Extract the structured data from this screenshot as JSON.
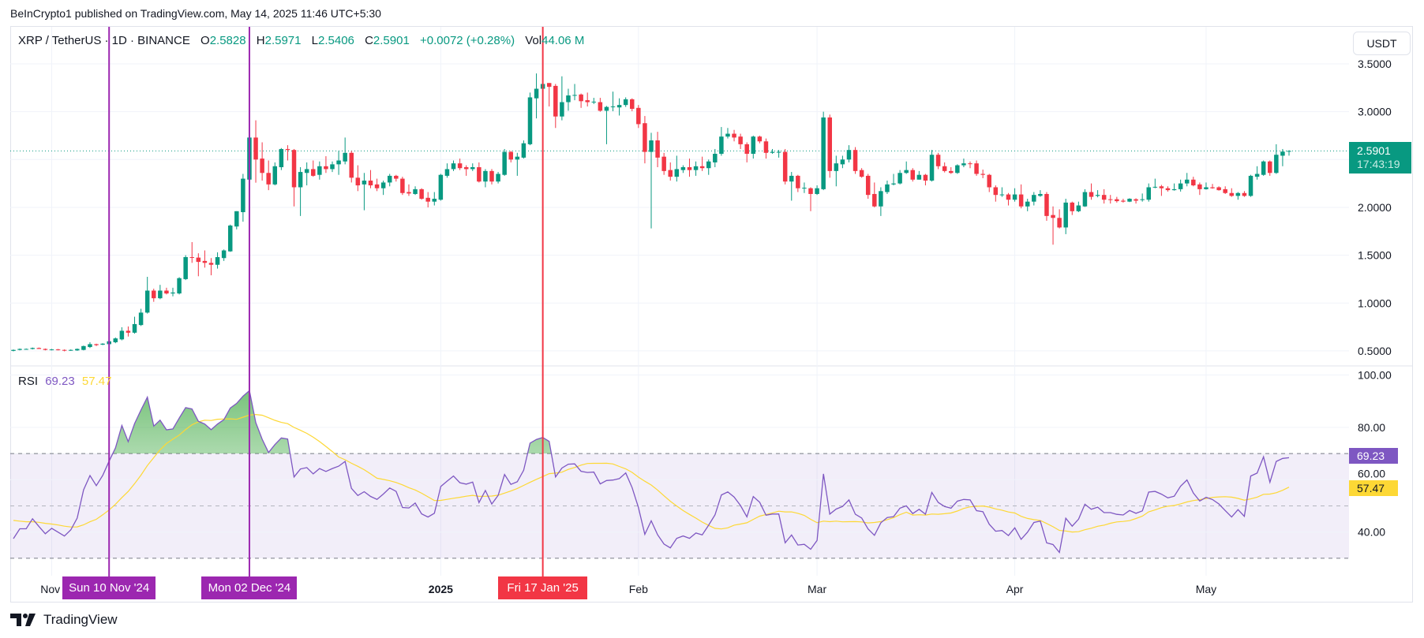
{
  "publisher": "BeInCrypto1 published on TradingView.com, May 14, 2025 11:46 UTC+5:30",
  "legend": {
    "symbol": "XRP / TetherUS · 1D · BINANCE",
    "o_label": "O",
    "o": "2.5828",
    "h_label": "H",
    "h": "2.5971",
    "l_label": "L",
    "l": "2.5406",
    "c_label": "C",
    "c": "2.5901",
    "change": "+0.0072 (+0.28%)",
    "vol_label": "Vol",
    "vol": "44.06 M"
  },
  "currency_button": "USDT",
  "price_tag": {
    "price": "2.5901",
    "countdown": "17:43:19"
  },
  "rsi_legend": {
    "label": "RSI",
    "rsi": "69.23",
    "ma": "57.47"
  },
  "logo": "TradingView",
  "colors": {
    "up": "#089981",
    "down": "#f23645",
    "rsi": "#7e57c2",
    "rsi_ma": "#fdd835",
    "marker_purple": "#9c27b0",
    "marker_red": "#f23645"
  },
  "chart_data": [
    {
      "type": "candlestick",
      "interval": "1D",
      "x_start": "2024-10-26",
      "x_end": "2025-05-14",
      "ylim": [
        0.45,
        3.6
      ],
      "grid": true,
      "y_ticks": [
        "3.5000",
        "3.0000",
        "2.0000",
        "1.5000",
        "1.0000",
        "0.5000"
      ],
      "y_tick_values": [
        3.5,
        3.0,
        2.5,
        2.0,
        1.5,
        1.0,
        0.5
      ],
      "x_ticks": [
        {
          "label": "Nov",
          "date": "2024-11-01"
        },
        {
          "label": "2025",
          "date": "2025-01-01",
          "bold": true
        },
        {
          "label": "Feb",
          "date": "2025-02-01"
        },
        {
          "label": "Mar",
          "date": "2025-03-01"
        },
        {
          "label": "Apr",
          "date": "2025-04-01"
        },
        {
          "label": "May",
          "date": "2025-05-01"
        }
      ],
      "last_price": 2.5901,
      "ohlc": [
        [
          0.5,
          0.515,
          0.495,
          0.51
        ],
        [
          0.51,
          0.525,
          0.505,
          0.52
        ],
        [
          0.52,
          0.525,
          0.515,
          0.52
        ],
        [
          0.52,
          0.535,
          0.515,
          0.53
        ],
        [
          0.53,
          0.535,
          0.52,
          0.52
        ],
        [
          0.52,
          0.525,
          0.505,
          0.51
        ],
        [
          0.51,
          0.52,
          0.505,
          0.515
        ],
        [
          0.515,
          0.52,
          0.505,
          0.51
        ],
        [
          0.51,
          0.515,
          0.495,
          0.505
        ],
        [
          0.505,
          0.515,
          0.5,
          0.51
        ],
        [
          0.505,
          0.525,
          0.5,
          0.52
        ],
        [
          0.51,
          0.555,
          0.505,
          0.55
        ],
        [
          0.54,
          0.59,
          0.53,
          0.57
        ],
        [
          0.57,
          0.575,
          0.55,
          0.56
        ],
        [
          0.565,
          0.58,
          0.56,
          0.575
        ],
        [
          0.57,
          0.61,
          0.565,
          0.6
        ],
        [
          0.59,
          0.64,
          0.58,
          0.63
        ],
        [
          0.62,
          0.747,
          0.61,
          0.71
        ],
        [
          0.71,
          0.755,
          0.65,
          0.69
        ],
        [
          0.69,
          0.857,
          0.68,
          0.78
        ],
        [
          0.77,
          0.94,
          0.76,
          0.9
        ],
        [
          0.9,
          1.274,
          0.89,
          1.13
        ],
        [
          1.13,
          1.15,
          1.013,
          1.05
        ],
        [
          1.05,
          1.19,
          1.04,
          1.13
        ],
        [
          1.13,
          1.16,
          1.09,
          1.1
        ],
        [
          1.1,
          1.16,
          1.07,
          1.11
        ],
        [
          1.1,
          1.27,
          1.09,
          1.26
        ],
        [
          1.25,
          1.5,
          1.24,
          1.48
        ],
        [
          1.48,
          1.637,
          1.42,
          1.475
        ],
        [
          1.475,
          1.52,
          1.28,
          1.43
        ],
        [
          1.44,
          1.55,
          1.37,
          1.42
        ],
        [
          1.42,
          1.47,
          1.29,
          1.4
        ],
        [
          1.4,
          1.53,
          1.36,
          1.48
        ],
        [
          1.47,
          1.56,
          1.44,
          1.55
        ],
        [
          1.54,
          1.82,
          1.535,
          1.81
        ],
        [
          1.8,
          1.96,
          1.77,
          1.96
        ],
        [
          1.95,
          2.35,
          1.85,
          2.3
        ],
        [
          2.29,
          2.876,
          2.21,
          2.73
        ],
        [
          2.73,
          2.91,
          2.258,
          2.5
        ],
        [
          2.51,
          2.68,
          2.28,
          2.36
        ],
        [
          2.36,
          2.49,
          2.18,
          2.24
        ],
        [
          2.24,
          2.47,
          2.23,
          2.43
        ],
        [
          2.42,
          2.62,
          2.39,
          2.61
        ],
        [
          2.61,
          2.65,
          2.49,
          2.6
        ],
        [
          2.6,
          2.61,
          2.01,
          2.21
        ],
        [
          2.21,
          2.42,
          1.91,
          2.37
        ],
        [
          2.36,
          2.47,
          2.23,
          2.4
        ],
        [
          2.4,
          2.49,
          2.32,
          2.33
        ],
        [
          2.34,
          2.48,
          2.29,
          2.43
        ],
        [
          2.43,
          2.535,
          2.36,
          2.4
        ],
        [
          2.4,
          2.48,
          2.37,
          2.45
        ],
        [
          2.45,
          2.59,
          2.34,
          2.49
        ],
        [
          2.48,
          2.73,
          2.45,
          2.57
        ],
        [
          2.57,
          2.59,
          2.26,
          2.31
        ],
        [
          2.31,
          2.44,
          2.17,
          2.23
        ],
        [
          2.24,
          2.36,
          1.97,
          2.28
        ],
        [
          2.28,
          2.39,
          2.2,
          2.23
        ],
        [
          2.24,
          2.3,
          2.17,
          2.2
        ],
        [
          2.2,
          2.28,
          2.13,
          2.26
        ],
        [
          2.26,
          2.35,
          2.22,
          2.33
        ],
        [
          2.33,
          2.34,
          2.27,
          2.3
        ],
        [
          2.3,
          2.32,
          2.13,
          2.15
        ],
        [
          2.16,
          2.24,
          2.12,
          2.145
        ],
        [
          2.14,
          2.22,
          2.13,
          2.19
        ],
        [
          2.19,
          2.2,
          2.08,
          2.09
        ],
        [
          2.1,
          2.16,
          2.0,
          2.06
        ],
        [
          2.06,
          2.16,
          2.02,
          2.09
        ],
        [
          2.08,
          2.35,
          2.07,
          2.34
        ],
        [
          2.33,
          2.46,
          2.31,
          2.4
        ],
        [
          2.4,
          2.49,
          2.38,
          2.46
        ],
        [
          2.46,
          2.51,
          2.39,
          2.41
        ],
        [
          2.42,
          2.44,
          2.33,
          2.4
        ],
        [
          2.4,
          2.46,
          2.38,
          2.42
        ],
        [
          2.42,
          2.47,
          2.26,
          2.27
        ],
        [
          2.27,
          2.4,
          2.21,
          2.38
        ],
        [
          2.38,
          2.4,
          2.24,
          2.27
        ],
        [
          2.27,
          2.37,
          2.25,
          2.35
        ],
        [
          2.34,
          2.61,
          2.33,
          2.58
        ],
        [
          2.58,
          2.59,
          2.47,
          2.5
        ],
        [
          2.5,
          2.57,
          2.33,
          2.53
        ],
        [
          2.52,
          2.7,
          2.51,
          2.67
        ],
        [
          2.66,
          3.2,
          2.65,
          3.15
        ],
        [
          3.14,
          3.4,
          2.93,
          3.24
        ],
        [
          3.24,
          3.35,
          3.18,
          3.29
        ],
        [
          3.3,
          3.3,
          3.055,
          3.26
        ],
        [
          3.27,
          3.29,
          2.83,
          2.95
        ],
        [
          2.95,
          3.37,
          2.91,
          3.1
        ],
        [
          3.1,
          3.24,
          3.01,
          3.17
        ],
        [
          3.17,
          3.29,
          3.12,
          3.175
        ],
        [
          3.18,
          3.19,
          3.04,
          3.11
        ],
        [
          3.12,
          3.2,
          3.055,
          3.1
        ],
        [
          3.1,
          3.145,
          3.08,
          3.105
        ],
        [
          3.1,
          3.145,
          3.0,
          3.01
        ],
        [
          3.01,
          3.06,
          2.66,
          3.05
        ],
        [
          3.05,
          3.21,
          3.005,
          3.055
        ],
        [
          3.045,
          3.14,
          2.96,
          3.07
        ],
        [
          3.07,
          3.15,
          3.05,
          3.13
        ],
        [
          3.13,
          3.14,
          3.005,
          3.03
        ],
        [
          3.04,
          3.07,
          2.83,
          2.87
        ],
        [
          2.88,
          2.955,
          2.46,
          2.58
        ],
        [
          2.58,
          2.78,
          1.78,
          2.7
        ],
        [
          2.7,
          2.79,
          2.42,
          2.52
        ],
        [
          2.53,
          2.57,
          2.34,
          2.38
        ],
        [
          2.39,
          2.47,
          2.28,
          2.32
        ],
        [
          2.32,
          2.54,
          2.27,
          2.4
        ],
        [
          2.39,
          2.44,
          2.36,
          2.42
        ],
        [
          2.42,
          2.51,
          2.32,
          2.39
        ],
        [
          2.39,
          2.48,
          2.33,
          2.43
        ],
        [
          2.43,
          2.53,
          2.38,
          2.41
        ],
        [
          2.41,
          2.5,
          2.34,
          2.48
        ],
        [
          2.47,
          2.61,
          2.42,
          2.56
        ],
        [
          2.56,
          2.84,
          2.54,
          2.74
        ],
        [
          2.74,
          2.83,
          2.72,
          2.77
        ],
        [
          2.77,
          2.81,
          2.69,
          2.73
        ],
        [
          2.74,
          2.77,
          2.61,
          2.66
        ],
        [
          2.66,
          2.68,
          2.47,
          2.56
        ],
        [
          2.56,
          2.75,
          2.51,
          2.74
        ],
        [
          2.74,
          2.75,
          2.67,
          2.69
        ],
        [
          2.69,
          2.72,
          2.51,
          2.57
        ],
        [
          2.57,
          2.61,
          2.56,
          2.58
        ],
        [
          2.575,
          2.6,
          2.52,
          2.58
        ],
        [
          2.58,
          2.61,
          2.24,
          2.27
        ],
        [
          2.27,
          2.37,
          2.07,
          2.33
        ],
        [
          2.33,
          2.34,
          2.16,
          2.2
        ],
        [
          2.2,
          2.26,
          2.15,
          2.205
        ],
        [
          2.2,
          2.21,
          1.96,
          2.14
        ],
        [
          2.14,
          2.23,
          2.13,
          2.2
        ],
        [
          2.19,
          3.0,
          2.18,
          2.94
        ],
        [
          2.94,
          2.97,
          2.31,
          2.38
        ],
        [
          2.38,
          2.54,
          2.22,
          2.46
        ],
        [
          2.45,
          2.54,
          2.41,
          2.5
        ],
        [
          2.5,
          2.65,
          2.47,
          2.6
        ],
        [
          2.6,
          2.63,
          2.35,
          2.38
        ],
        [
          2.39,
          2.41,
          2.31,
          2.32
        ],
        [
          2.33,
          2.35,
          2.09,
          2.13
        ],
        [
          2.14,
          2.26,
          2.0,
          2.01
        ],
        [
          2.01,
          2.21,
          1.91,
          2.17
        ],
        [
          2.16,
          2.28,
          2.14,
          2.24
        ],
        [
          2.24,
          2.35,
          2.23,
          2.25
        ],
        [
          2.25,
          2.39,
          2.24,
          2.36
        ],
        [
          2.36,
          2.48,
          2.35,
          2.39
        ],
        [
          2.39,
          2.41,
          2.27,
          2.29
        ],
        [
          2.29,
          2.38,
          2.29,
          2.34
        ],
        [
          2.34,
          2.35,
          2.23,
          2.28
        ],
        [
          2.28,
          2.6,
          2.27,
          2.55
        ],
        [
          2.55,
          2.57,
          2.4,
          2.43
        ],
        [
          2.43,
          2.47,
          2.365,
          2.38
        ],
        [
          2.38,
          2.42,
          2.35,
          2.36
        ],
        [
          2.36,
          2.45,
          2.35,
          2.44
        ],
        [
          2.44,
          2.51,
          2.42,
          2.46
        ],
        [
          2.46,
          2.48,
          2.41,
          2.455
        ],
        [
          2.46,
          2.49,
          2.33,
          2.35
        ],
        [
          2.35,
          2.395,
          2.305,
          2.34
        ],
        [
          2.34,
          2.35,
          2.16,
          2.21
        ],
        [
          2.21,
          2.23,
          2.06,
          2.13
        ],
        [
          2.13,
          2.21,
          2.11,
          2.135
        ],
        [
          2.135,
          2.15,
          2.02,
          2.08
        ],
        [
          2.08,
          2.2,
          2.06,
          2.135
        ],
        [
          2.135,
          2.24,
          1.99,
          2.01
        ],
        [
          2.01,
          2.09,
          1.96,
          2.06
        ],
        [
          2.06,
          2.16,
          2.02,
          2.13
        ],
        [
          2.12,
          2.18,
          2.11,
          2.14
        ],
        [
          2.14,
          2.16,
          1.86,
          1.91
        ],
        [
          1.92,
          2.01,
          1.61,
          1.89
        ],
        [
          1.89,
          1.98,
          1.78,
          1.79
        ],
        [
          1.79,
          2.09,
          1.72,
          2.05
        ],
        [
          2.05,
          2.06,
          1.92,
          1.96
        ],
        [
          1.96,
          2.06,
          1.95,
          2.02
        ],
        [
          2.01,
          2.19,
          2.005,
          2.16
        ],
        [
          2.16,
          2.25,
          2.08,
          2.11
        ],
        [
          2.12,
          2.18,
          2.105,
          2.13
        ],
        [
          2.13,
          2.19,
          2.04,
          2.08
        ],
        [
          2.085,
          2.13,
          2.04,
          2.08
        ],
        [
          2.085,
          2.11,
          2.05,
          2.065
        ],
        [
          2.07,
          2.09,
          2.05,
          2.06
        ],
        [
          2.06,
          2.095,
          2.055,
          2.09
        ],
        [
          2.085,
          2.095,
          2.04,
          2.07
        ],
        [
          2.08,
          2.145,
          2.06,
          2.085
        ],
        [
          2.08,
          2.25,
          2.06,
          2.21
        ],
        [
          2.21,
          2.3,
          2.2,
          2.215
        ],
        [
          2.22,
          2.235,
          2.12,
          2.2
        ],
        [
          2.2,
          2.22,
          2.165,
          2.18
        ],
        [
          2.18,
          2.25,
          2.175,
          2.19
        ],
        [
          2.19,
          2.29,
          2.165,
          2.25
        ],
        [
          2.25,
          2.36,
          2.22,
          2.29
        ],
        [
          2.29,
          2.32,
          2.22,
          2.23
        ],
        [
          2.24,
          2.26,
          2.13,
          2.19
        ],
        [
          2.19,
          2.26,
          2.185,
          2.21
        ],
        [
          2.21,
          2.245,
          2.195,
          2.2
        ],
        [
          2.21,
          2.22,
          2.175,
          2.18
        ],
        [
          2.19,
          2.22,
          2.14,
          2.15
        ],
        [
          2.15,
          2.2,
          2.11,
          2.12
        ],
        [
          2.12,
          2.16,
          2.08,
          2.15
        ],
        [
          2.15,
          2.17,
          2.11,
          2.12
        ],
        [
          2.12,
          2.34,
          2.11,
          2.33
        ],
        [
          2.32,
          2.43,
          2.29,
          2.35
        ],
        [
          2.34,
          2.49,
          2.33,
          2.48
        ],
        [
          2.48,
          2.49,
          2.33,
          2.36
        ],
        [
          2.36,
          2.66,
          2.35,
          2.55
        ],
        [
          2.54,
          2.61,
          2.43,
          2.5828
        ],
        [
          2.5828,
          2.5971,
          2.5406,
          2.5901
        ]
      ]
    },
    {
      "type": "line",
      "indicator": "RSI",
      "ylim": [
        25,
        105
      ],
      "y_ticks": [
        "100.00",
        "80.00",
        "60.00",
        "40.00"
      ],
      "y_tick_values": [
        100,
        80,
        60,
        40
      ],
      "bands": {
        "upper": 70,
        "middle": 50,
        "lower": 30
      },
      "last_rsi": 69.23,
      "last_ma": 57.47
    }
  ],
  "markers": [
    {
      "date": "2024-11-10",
      "label": "Sun 10 Nov '24",
      "color": "#9c27b0"
    },
    {
      "date": "2024-12-02",
      "label": "Mon 02 Dec '24",
      "color": "#9c27b0"
    },
    {
      "date": "2025-01-17",
      "label": "Fri 17 Jan '25",
      "color": "#f23645"
    }
  ]
}
